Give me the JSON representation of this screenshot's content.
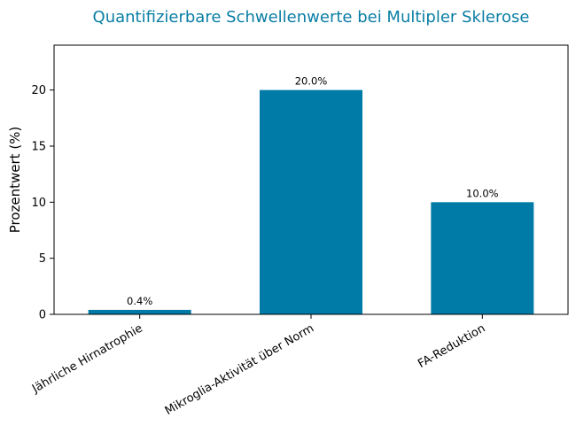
{
  "chart_data": {
    "type": "bar",
    "title": "Quantifizierbare Schwellenwerte bei Multipler Sklerose",
    "xlabel": "",
    "ylabel": "Prozentwert (%)",
    "categories": [
      "Jährliche Hirnatrophie",
      "Mikroglia-Aktivität über Norm",
      "FA-Reduktion"
    ],
    "values": [
      0.4,
      20.0,
      10.0
    ],
    "data_labels": [
      "0.4%",
      "20.0%",
      "10.0%"
    ],
    "ylim": [
      0,
      24
    ],
    "yticks": [
      0,
      5,
      10,
      15,
      20
    ],
    "grid": false,
    "colors": {
      "bar": "#007BA7",
      "title": "#0A7EA4"
    }
  }
}
